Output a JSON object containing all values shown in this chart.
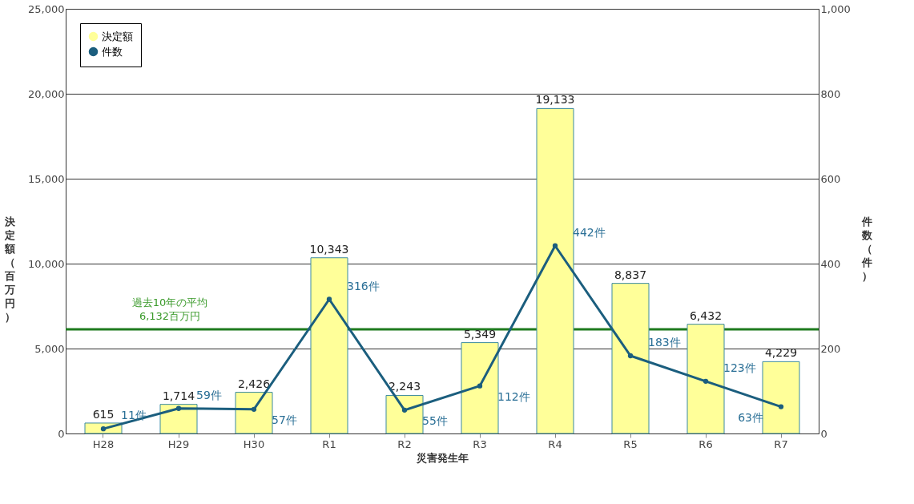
{
  "chart_data": {
    "type": "bar",
    "xlabel": "災害発生年",
    "ylabel": "決定額（百万円）",
    "y2label": "件数（件）",
    "categories": [
      "H28",
      "H29",
      "H30",
      "R1",
      "R2",
      "R3",
      "R4",
      "R5",
      "R6",
      "R7"
    ],
    "series": [
      {
        "name": "決定額",
        "color": "#ffff99",
        "values": [
          615,
          1714,
          2426,
          10343,
          2243,
          5349,
          19133,
          8837,
          6432,
          4229
        ],
        "value_labels": [
          "615",
          "1,714",
          "2,426",
          "10,343",
          "2,243",
          "5,349",
          "19,133",
          "8,837",
          "6,432",
          "4,229"
        ]
      },
      {
        "name": "件数",
        "type": "line",
        "axis": "y2",
        "color": "#1b5e7e",
        "values": [
          11,
          59,
          57,
          316,
          55,
          112,
          442,
          183,
          123,
          63
        ],
        "value_labels": [
          "11件",
          "59件",
          "57件",
          "316件",
          "55件",
          "112件",
          "442件",
          "183件",
          "123件",
          "63件"
        ]
      }
    ],
    "ylim": [
      0,
      25000
    ],
    "yticks": [
      0,
      {
        "value": 5000,
        "label": "5,000"
      },
      {
        "value": 10000,
        "label": "10,000"
      },
      {
        "value": 15000,
        "label": "15,000"
      },
      {
        "value": 20000,
        "label": "20,000"
      },
      {
        "value": 25000,
        "label": "25,000"
      }
    ],
    "y2lim": [
      0,
      1000
    ],
    "y2ticks": [
      0,
      200,
      400,
      600,
      800,
      {
        "value": 1000,
        "label": "1,000"
      }
    ],
    "ref_lines": [
      {
        "axis": "y",
        "value": 6132,
        "label": "過去10年の平均\n6,132百万円",
        "color": "#1e7b1e"
      }
    ],
    "grid": "y",
    "legend": "top left",
    "marker": "circle",
    "line_style": "solid"
  }
}
